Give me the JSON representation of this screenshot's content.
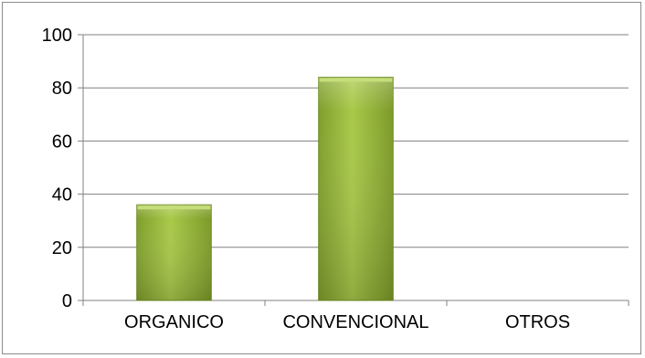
{
  "chart_data": {
    "type": "bar",
    "categories": [
      "ORGANICO",
      "CONVENCIONAL",
      "OTROS"
    ],
    "values": [
      36,
      84,
      0
    ],
    "title": "",
    "xlabel": "",
    "ylabel": "",
    "ylim": [
      0,
      100
    ],
    "yticks": [
      "0",
      "20",
      "40",
      "60",
      "80",
      "100"
    ],
    "grid": true,
    "legend": "none",
    "colors": {
      "bar_light": "#c6dd7a",
      "bar_mid": "#9bbb3c",
      "bar_dark": "#6e8c22",
      "grid": "#808080"
    }
  }
}
